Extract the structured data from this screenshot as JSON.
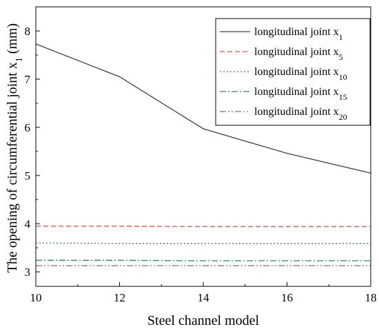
{
  "chart_data": {
    "type": "line",
    "title": "",
    "xlabel": "Steel channel model",
    "ylabel": {
      "main": "The opening of circumferential joint x",
      "sub": "1",
      "unit": " (mm)"
    },
    "xlim": [
      10,
      18
    ],
    "ylim": [
      2.7,
      8.5
    ],
    "xticks": [
      "10",
      "12",
      "14",
      "16",
      "18"
    ],
    "yticks": [
      "3",
      "4",
      "5",
      "6",
      "7",
      "8"
    ],
    "grid": false,
    "legend_position": "top-right",
    "x": [
      10,
      12,
      14,
      16,
      18
    ],
    "series": [
      {
        "name": "longitudinal joint x",
        "sub": "1",
        "values": [
          7.73,
          7.05,
          5.97,
          5.46,
          5.05
        ],
        "color": "#404040",
        "dash": ""
      },
      {
        "name": "longitudinal joint x",
        "sub": "5",
        "values": [
          3.95,
          3.95,
          3.94,
          3.94,
          3.94
        ],
        "color": "#d9534f",
        "dash": "7,4"
      },
      {
        "name": "longitudinal joint x",
        "sub": "10",
        "values": [
          3.6,
          3.59,
          3.59,
          3.59,
          3.59
        ],
        "color": "#2a7ab8",
        "dash": "2,3"
      },
      {
        "name": "longitudinal joint x",
        "sub": "15",
        "values": [
          3.24,
          3.24,
          3.23,
          3.23,
          3.23
        ],
        "color": "#2e8b57",
        "dash": "9,3,2,3"
      },
      {
        "name": "longitudinal joint x",
        "sub": "20",
        "values": [
          3.13,
          3.13,
          3.13,
          3.13,
          3.13
        ],
        "color": "#9b59b6",
        "dash": "9,3,2,3,2,3"
      }
    ]
  }
}
